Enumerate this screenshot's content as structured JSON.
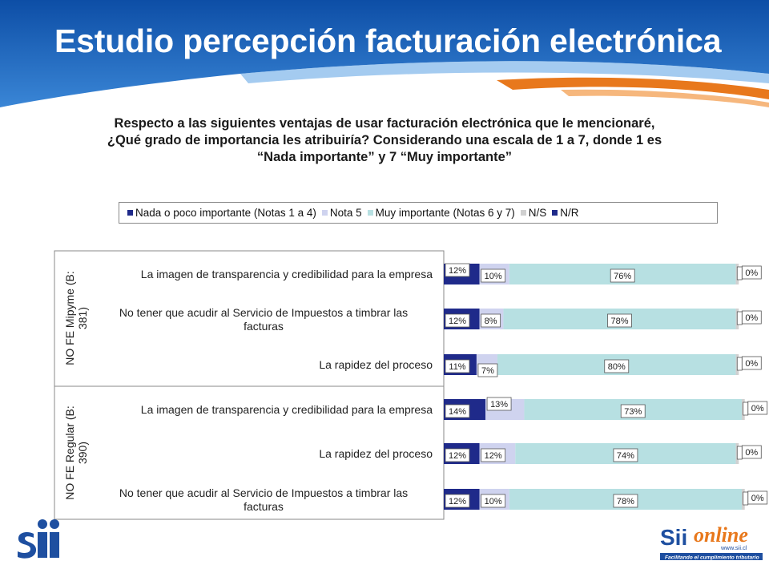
{
  "header": {
    "title": "Estudio percepción facturación electrónica"
  },
  "question": {
    "line1": "Respecto a las siguientes ventajas de usar facturación electrónica que le mencionaré,",
    "line2": "¿Qué grado de importancia les atribuiría? Considerando una escala de 1 a 7, donde 1 es",
    "line3": "“Nada importante” y 7 “Muy importante”"
  },
  "colors": {
    "banner_blue": "#1e63b8",
    "orange_accent": "#e8781c",
    "nada": "#1f2a8a",
    "nota5": "#cfd3ef",
    "muy": "#b7e0e2",
    "ns": "#d0d0d0",
    "nr": "#1f2a8a"
  },
  "chart_data": {
    "type": "bar",
    "orientation": "horizontal",
    "stacked": true,
    "legend_position": "top",
    "legend": [
      "Nada o poco importante (Notas 1 a 4)",
      "Nota 5",
      "Muy importante (Notas 6 y 7)",
      "N/S",
      "N/R"
    ],
    "groups": [
      {
        "name": "NO FE Mipyme (B: 381)",
        "items": [
          {
            "label": "La imagen de transparencia y credibilidad para la empresa",
            "values": [
              12,
              10,
              76,
              1,
              0
            ],
            "labels": [
              "12%",
              "10%",
              "76%",
              "",
              "0%"
            ]
          },
          {
            "label": "No tener que acudir al Servicio de Impuestos a timbrar las facturas",
            "values": [
              12,
              8,
              78,
              1,
              0
            ],
            "labels": [
              "12%",
              "8%",
              "78%",
              "",
              "0%"
            ]
          },
          {
            "label": "La rapidez del proceso",
            "values": [
              11,
              7,
              80,
              1,
              0
            ],
            "labels": [
              "11%",
              "7%",
              "80%",
              "",
              "0%"
            ]
          }
        ]
      },
      {
        "name": "NO FE Regular (B: 390)",
        "items": [
          {
            "label": "La imagen de transparencia y credibilidad para la empresa",
            "values": [
              14,
              13,
              73,
              1,
              0
            ],
            "labels": [
              "14%",
              "13%",
              "73%",
              "",
              "0%"
            ]
          },
          {
            "label": "La rapidez del proceso",
            "values": [
              12,
              12,
              74,
              1,
              0
            ],
            "labels": [
              "12%",
              "12%",
              "74%",
              "",
              "0%"
            ]
          },
          {
            "label": "No tener que acudir al Servicio de Impuestos a timbrar las facturas",
            "values": [
              12,
              10,
              78,
              1,
              0
            ],
            "labels": [
              "12%",
              "10%",
              "78%",
              "",
              "0%"
            ]
          }
        ]
      }
    ],
    "xlim": [
      0,
      100
    ]
  },
  "logos": {
    "left_text": "Sii",
    "right_text": "Siionline",
    "right_url": "www.sii.cl",
    "right_tagline": "Facilitando el cumplimiento tributario"
  }
}
